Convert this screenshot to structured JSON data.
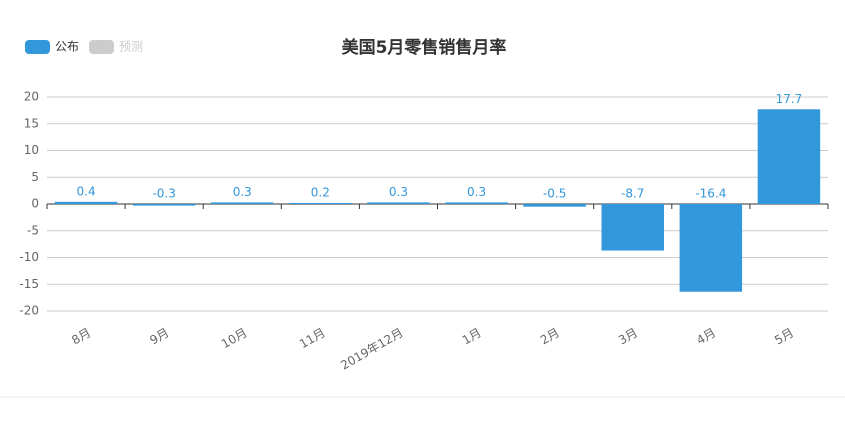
{
  "chart_data": {
    "type": "bar",
    "title": "美国5月零售销售月率",
    "categories": [
      "8月",
      "9月",
      "10月",
      "11月",
      "2019年12月",
      "1月",
      "2月",
      "3月",
      "4月",
      "5月"
    ],
    "series": [
      {
        "name": "公布",
        "color": "#3398db",
        "values": [
          0.4,
          -0.3,
          0.3,
          0.2,
          0.3,
          0.3,
          -0.5,
          -8.7,
          -16.4,
          17.7
        ]
      },
      {
        "name": "预测",
        "color": "#cccccc",
        "values": [
          null,
          null,
          null,
          null,
          null,
          null,
          null,
          null,
          null,
          null
        ]
      }
    ],
    "ylim": [
      -20,
      20
    ],
    "yticks": [
      -20,
      -15,
      -10,
      -5,
      0,
      5,
      10,
      15,
      20
    ],
    "grid": true
  }
}
